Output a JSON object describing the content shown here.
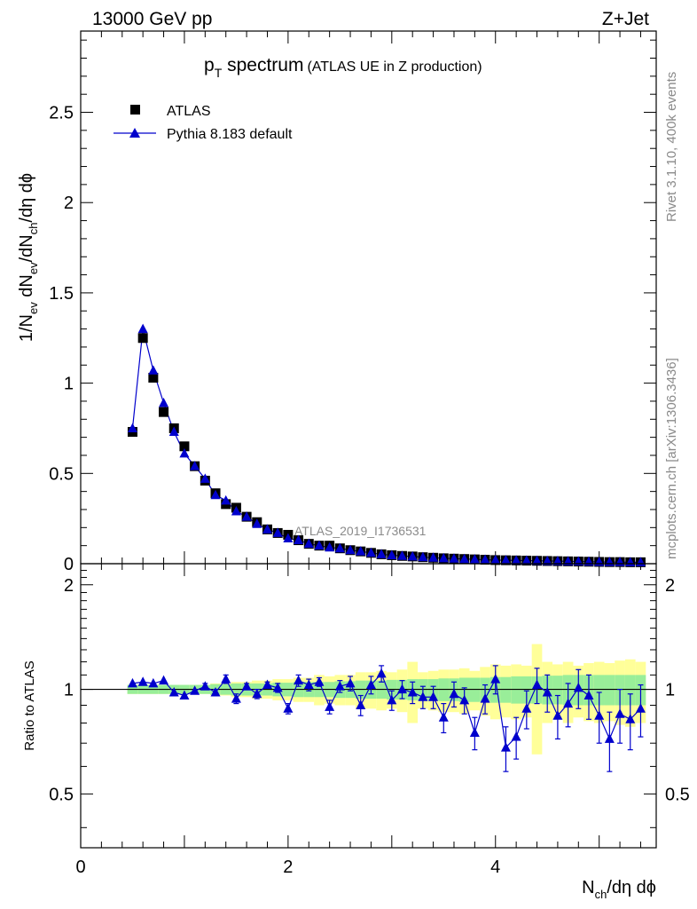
{
  "header": {
    "left": "13000 GeV pp",
    "right": "Z+Jet"
  },
  "chart_data": {
    "type": "scatter",
    "title": {
      "main": "p",
      "sub": "T",
      "rest": " spectrum",
      "extra": "(ATLAS UE in Z production)"
    },
    "ylabel": {
      "a": "1/N",
      "b": "ev",
      "c": " dN",
      "d": "ev",
      "e": "/dN",
      "f": "ch",
      "g": "/dη dϕ"
    },
    "xlabel": {
      "a": "N",
      "b": "ch",
      "c": "/dη dϕ"
    },
    "ratio_ylabel": "Ratio to ATLAS",
    "analysis_label": "ATLAS_2019_I1736531",
    "side_text": {
      "top": "Rivet 3.1.10,  400k events",
      "bottom": "mcplots.cern.ch [arXiv:1306.3436]"
    },
    "legend": [
      {
        "label": "ATLAS",
        "marker": "square",
        "color": "#000000"
      },
      {
        "label": "Pythia 8.183 default",
        "marker": "triangle",
        "color": "#0000cc"
      }
    ],
    "xlim": [
      0,
      5.55
    ],
    "ylim": [
      0,
      2.95
    ],
    "ratio_ylim": [
      0.35,
      2.3
    ],
    "x_ticks": [
      {
        "v": 0,
        "label": "0"
      },
      {
        "v": 2,
        "label": "2"
      },
      {
        "v": 4,
        "label": "4"
      }
    ],
    "y_ticks": [
      {
        "v": 0,
        "label": "0"
      },
      {
        "v": 0.5,
        "label": "0.5"
      },
      {
        "v": 1,
        "label": "1"
      },
      {
        "v": 1.5,
        "label": "1.5"
      },
      {
        "v": 2,
        "label": "2"
      },
      {
        "v": 2.5,
        "label": "2.5"
      }
    ],
    "ratio_y_ticks": [
      {
        "v": 0.5,
        "label": "0.5"
      },
      {
        "v": 1,
        "label": "1"
      },
      {
        "v": 2,
        "label": "2"
      }
    ],
    "x": [
      0.5,
      0.6,
      0.7,
      0.8,
      0.9,
      1.0,
      1.1,
      1.2,
      1.3,
      1.4,
      1.5,
      1.6,
      1.7,
      1.8,
      1.9,
      2.0,
      2.1,
      2.2,
      2.3,
      2.4,
      2.5,
      2.6,
      2.7,
      2.8,
      2.9,
      3.0,
      3.1,
      3.2,
      3.3,
      3.4,
      3.5,
      3.6,
      3.7,
      3.8,
      3.9,
      4.0,
      4.1,
      4.2,
      4.3,
      4.4,
      4.5,
      4.6,
      4.7,
      4.8,
      4.9,
      5.0,
      5.1,
      5.2,
      5.3,
      5.4
    ],
    "series": [
      {
        "name": "ATLAS",
        "values": [
          0.73,
          1.25,
          1.03,
          0.84,
          0.75,
          0.65,
          0.54,
          0.46,
          0.39,
          0.33,
          0.31,
          0.26,
          0.23,
          0.19,
          0.17,
          0.16,
          0.13,
          0.11,
          0.1,
          0.1,
          0.085,
          0.075,
          0.068,
          0.06,
          0.052,
          0.047,
          0.043,
          0.04,
          0.036,
          0.033,
          0.03,
          0.028,
          0.026,
          0.024,
          0.022,
          0.02,
          0.019,
          0.018,
          0.017,
          0.016,
          0.015,
          0.014,
          0.013,
          0.012,
          0.011,
          0.01,
          0.009,
          0.009,
          0.008,
          0.008
        ],
        "band_inner": [
          0.03,
          0.03,
          0.03,
          0.03,
          0.03,
          0.03,
          0.03,
          0.03,
          0.035,
          0.035,
          0.04,
          0.04,
          0.04,
          0.04,
          0.045,
          0.045,
          0.05,
          0.05,
          0.05,
          0.05,
          0.055,
          0.055,
          0.06,
          0.06,
          0.06,
          0.065,
          0.065,
          0.07,
          0.07,
          0.07,
          0.075,
          0.075,
          0.08,
          0.08,
          0.08,
          0.085,
          0.085,
          0.09,
          0.09,
          0.09,
          0.095,
          0.095,
          0.1,
          0.1,
          0.1,
          0.1,
          0.1,
          0.1,
          0.1,
          0.1
        ],
        "band_outer": [
          0.03,
          0.03,
          0.03,
          0.03,
          0.03,
          0.03,
          0.03,
          0.03,
          0.04,
          0.04,
          0.05,
          0.05,
          0.06,
          0.06,
          0.07,
          0.07,
          0.08,
          0.08,
          0.1,
          0.09,
          0.1,
          0.1,
          0.12,
          0.12,
          0.13,
          0.12,
          0.14,
          0.2,
          0.12,
          0.13,
          0.14,
          0.14,
          0.15,
          0.13,
          0.16,
          0.18,
          0.17,
          0.18,
          0.17,
          0.35,
          0.2,
          0.18,
          0.2,
          0.17,
          0.19,
          0.2,
          0.19,
          0.21,
          0.22,
          0.2
        ]
      },
      {
        "name": "Pythia 8.183 default",
        "values": [
          0.75,
          1.3,
          1.07,
          0.89,
          0.73,
          0.61,
          0.54,
          0.47,
          0.38,
          0.35,
          0.29,
          0.26,
          0.22,
          0.19,
          0.17,
          0.14,
          0.13,
          0.11,
          0.1,
          0.09,
          0.085,
          0.075,
          0.068,
          0.06,
          0.052,
          0.047,
          0.043,
          0.04,
          0.036,
          0.033,
          0.03,
          0.028,
          0.026,
          0.024,
          0.022,
          0.02,
          0.019,
          0.018,
          0.017,
          0.016,
          0.015,
          0.014,
          0.013,
          0.012,
          0.011,
          0.01,
          0.009,
          0.009,
          0.008,
          0.008
        ],
        "ratio": [
          1.04,
          1.05,
          1.04,
          1.06,
          0.98,
          0.96,
          0.99,
          1.02,
          0.98,
          1.07,
          0.94,
          1.02,
          0.97,
          1.03,
          1.01,
          0.88,
          1.06,
          1.03,
          1.05,
          0.89,
          1.02,
          1.04,
          0.9,
          1.03,
          1.11,
          0.93,
          1.0,
          0.98,
          0.95,
          0.95,
          0.83,
          0.97,
          0.93,
          0.75,
          0.94,
          1.07,
          0.68,
          0.73,
          0.88,
          1.03,
          0.98,
          0.84,
          0.91,
          1.01,
          0.96,
          0.84,
          0.72,
          0.85,
          0.82,
          0.88
        ],
        "ratio_err": [
          0.01,
          0.01,
          0.01,
          0.01,
          0.01,
          0.01,
          0.01,
          0.02,
          0.02,
          0.03,
          0.03,
          0.02,
          0.03,
          0.02,
          0.03,
          0.03,
          0.04,
          0.04,
          0.03,
          0.04,
          0.04,
          0.05,
          0.06,
          0.06,
          0.06,
          0.06,
          0.06,
          0.07,
          0.07,
          0.07,
          0.08,
          0.08,
          0.08,
          0.08,
          0.09,
          0.1,
          0.1,
          0.1,
          0.11,
          0.12,
          0.12,
          0.12,
          0.13,
          0.13,
          0.14,
          0.14,
          0.14,
          0.15,
          0.15,
          0.15
        ]
      }
    ]
  }
}
